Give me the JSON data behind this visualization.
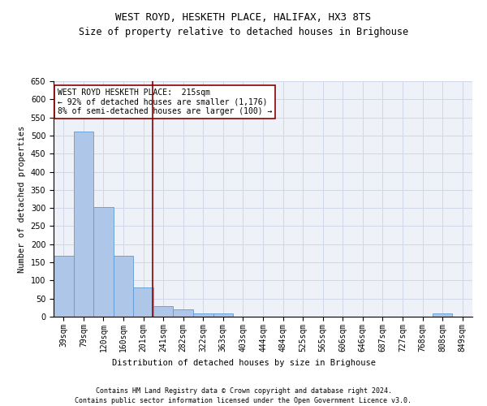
{
  "title": "WEST ROYD, HESKETH PLACE, HALIFAX, HX3 8TS",
  "subtitle": "Size of property relative to detached houses in Brighouse",
  "xlabel": "Distribution of detached houses by size in Brighouse",
  "ylabel": "Number of detached properties",
  "bin_labels": [
    "39sqm",
    "79sqm",
    "120sqm",
    "160sqm",
    "201sqm",
    "241sqm",
    "282sqm",
    "322sqm",
    "363sqm",
    "403sqm",
    "444sqm",
    "484sqm",
    "525sqm",
    "565sqm",
    "606sqm",
    "646sqm",
    "687sqm",
    "727sqm",
    "768sqm",
    "808sqm",
    "849sqm"
  ],
  "values": [
    168,
    510,
    302,
    168,
    80,
    30,
    20,
    8,
    8,
    0,
    0,
    0,
    0,
    0,
    0,
    0,
    0,
    0,
    0,
    8,
    0
  ],
  "bar_color": "#aec6e8",
  "bar_edge_color": "#5b9bd5",
  "grid_color": "#d0d8e8",
  "vline_x": 4.45,
  "vline_color": "#8b0000",
  "annotation_text": "WEST ROYD HESKETH PLACE:  215sqm\n← 92% of detached houses are smaller (1,176)\n8% of semi-detached houses are larger (100) →",
  "annotation_box_color": "#8b0000",
  "ylim": [
    0,
    650
  ],
  "yticks": [
    0,
    50,
    100,
    150,
    200,
    250,
    300,
    350,
    400,
    450,
    500,
    550,
    600,
    650
  ],
  "footer_line1": "Contains HM Land Registry data © Crown copyright and database right 2024.",
  "footer_line2": "Contains public sector information licensed under the Open Government Licence v3.0.",
  "bg_color": "#eef2f8",
  "fig_bg_color": "#ffffff",
  "title_fontsize": 9,
  "subtitle_fontsize": 8.5,
  "axis_label_fontsize": 7.5,
  "tick_fontsize": 7,
  "annotation_fontsize": 7,
  "footer_fontsize": 6
}
